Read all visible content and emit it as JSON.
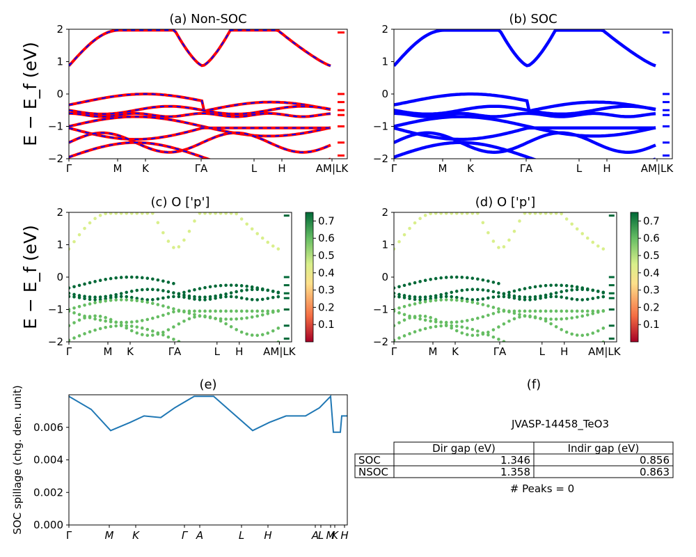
{
  "figure": {
    "ylabel_bands": "E − E_f (eV)",
    "ylabel_spillage": "SOC spillage (chg. den. unit)"
  },
  "chart_data": [
    {
      "id": "a",
      "type": "line",
      "title": "(a) Non-SOC",
      "ylim": [
        -2,
        2
      ],
      "yticks": [
        2,
        1,
        0,
        -1,
        -2
      ],
      "xticks": [
        "Γ",
        "M",
        "K",
        "ΓA",
        "L",
        "H",
        "AM|LK"
      ],
      "series": [
        {
          "color": "#ff0000",
          "dashed_overlay": "#0000ff"
        }
      ],
      "band_extrema": {
        "gamma_upper": 0.87,
        "valence_top": 0.0,
        "lower_band": -1.9
      }
    },
    {
      "id": "b",
      "type": "line",
      "title": "(b) SOC",
      "ylim": [
        -2,
        2
      ],
      "yticks": [
        2,
        1,
        0,
        -1,
        -2
      ],
      "xticks": [
        "Γ",
        "M",
        "K",
        "ΓA",
        "L",
        "H",
        "AM|LK"
      ],
      "series": [
        {
          "color": "#0000ff"
        }
      ]
    },
    {
      "id": "c",
      "type": "scatter",
      "title": "(c)  O ['p']",
      "ylim": [
        -2,
        2
      ],
      "yticks": [
        2,
        1,
        0,
        -1,
        -2
      ],
      "xticks": [
        "Γ",
        "M",
        "K",
        "ΓA",
        "L",
        "H",
        "AM|LK"
      ],
      "colorbar": {
        "cmap": "RdYlGn",
        "ticks": [
          "0.7",
          "0.6",
          "0.5",
          "0.4",
          "0.3",
          "0.2",
          "0.1"
        ],
        "range": [
          0.0,
          0.75
        ]
      }
    },
    {
      "id": "d",
      "type": "scatter",
      "title": "(d) O ['p']",
      "ylim": [
        -2,
        2
      ],
      "yticks": [
        2,
        1,
        0,
        -1,
        -2
      ],
      "xticks": [
        "Γ",
        "M",
        "K",
        "ΓA",
        "L",
        "H",
        "AM|LK"
      ],
      "colorbar": {
        "cmap": "RdYlGn",
        "ticks": [
          "0.7",
          "0.6",
          "0.5",
          "0.4",
          "0.3",
          "0.2",
          "0.1"
        ],
        "range": [
          0.0,
          0.75
        ]
      }
    },
    {
      "id": "e",
      "type": "line",
      "title": "(e)",
      "ylim": [
        0,
        0.008
      ],
      "yticks": [
        "0.006",
        "0.004",
        "0.002",
        "0.000"
      ],
      "xticks": [
        "Γ",
        "M",
        "K",
        "Γ",
        "A",
        "L",
        "H",
        "A",
        "L",
        "M",
        "K",
        "H"
      ],
      "series": [
        {
          "color": "#1f77b4",
          "x": [
            0,
            0.08,
            0.15,
            0.22,
            0.27,
            0.33,
            0.38,
            0.45,
            0.52,
            0.58,
            0.66,
            0.72,
            0.78,
            0.85,
            0.9,
            0.94,
            0.95,
            0.975,
            0.98,
            1.0
          ],
          "y": [
            0.0079,
            0.0071,
            0.0058,
            0.0063,
            0.0067,
            0.0066,
            0.0072,
            0.0079,
            0.0079,
            0.007,
            0.0058,
            0.0063,
            0.0067,
            0.0067,
            0.0072,
            0.0079,
            0.0057,
            0.0057,
            0.0067,
            0.0067
          ]
        }
      ]
    },
    {
      "id": "f",
      "type": "table",
      "title": "(f)",
      "subtitle": "JVASP-14458_TeO3",
      "columns": [
        "Dir gap (eV)",
        "Indir gap (eV)"
      ],
      "rows": [
        {
          "label": "SOC",
          "values": [
            "1.346",
            "0.856"
          ]
        },
        {
          "label": "NSOC",
          "values": [
            "1.358",
            "0.863"
          ]
        }
      ],
      "footer": "# Peaks = 0"
    }
  ]
}
